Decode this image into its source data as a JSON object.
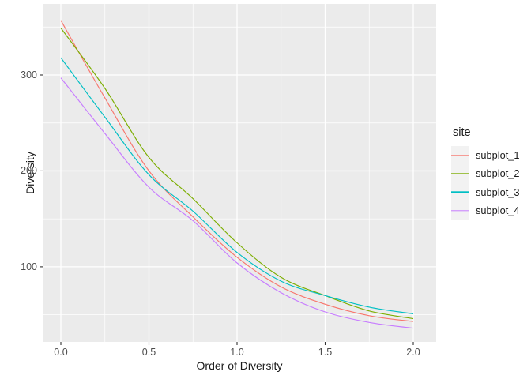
{
  "chart_data": {
    "type": "line",
    "title": "",
    "xlabel": "Order of Diversity",
    "ylabel": "Diversity",
    "x": [
      0,
      0.25,
      0.5,
      0.75,
      1.0,
      1.25,
      1.5,
      1.75,
      2.0
    ],
    "series": [
      {
        "name": "subplot_1",
        "color": "#F8766D",
        "values": [
          357,
          276,
          200,
          152,
          110,
          79,
          61,
          49,
          43
        ]
      },
      {
        "name": "subplot_2",
        "color": "#7CAE00",
        "values": [
          349,
          286,
          214,
          171,
          125,
          89,
          70,
          54,
          46
        ]
      },
      {
        "name": "subplot_3",
        "color": "#00BFC4",
        "values": [
          318,
          256,
          196,
          158,
          115,
          85,
          70,
          58,
          51
        ]
      },
      {
        "name": "subplot_4",
        "color": "#C77CFF",
        "values": [
          297,
          239,
          183,
          148,
          104,
          73,
          53,
          42,
          36
        ]
      }
    ],
    "x_ticks": {
      "major": [
        0,
        0.5,
        1.0,
        1.5,
        2.0
      ],
      "minor": [
        0.25,
        0.75,
        1.25,
        1.75
      ],
      "labels": [
        "0.0",
        "0.5",
        "1.0",
        "1.5",
        "2.0"
      ]
    },
    "y_ticks": {
      "major": [
        100,
        200,
        300
      ],
      "minor": [
        50,
        150,
        250,
        350
      ],
      "labels": [
        "100",
        "200",
        "300"
      ]
    },
    "xlim": [
      -0.1,
      2.13
    ],
    "ylim": [
      22,
      374
    ],
    "grid": "on",
    "legend": {
      "title": "site",
      "position": "right",
      "entries": [
        "subplot_1",
        "subplot_2",
        "subplot_3",
        "subplot_4"
      ]
    },
    "style": {
      "panel_bg": "#EBEBEB",
      "grid_color": "#FFFFFF",
      "legend_key_bg": "#F2F2F2",
      "tick_text_color": "#4D4D4D",
      "axis_title_color": "#1a1a1a",
      "tick_mark_color": "#333333"
    }
  }
}
